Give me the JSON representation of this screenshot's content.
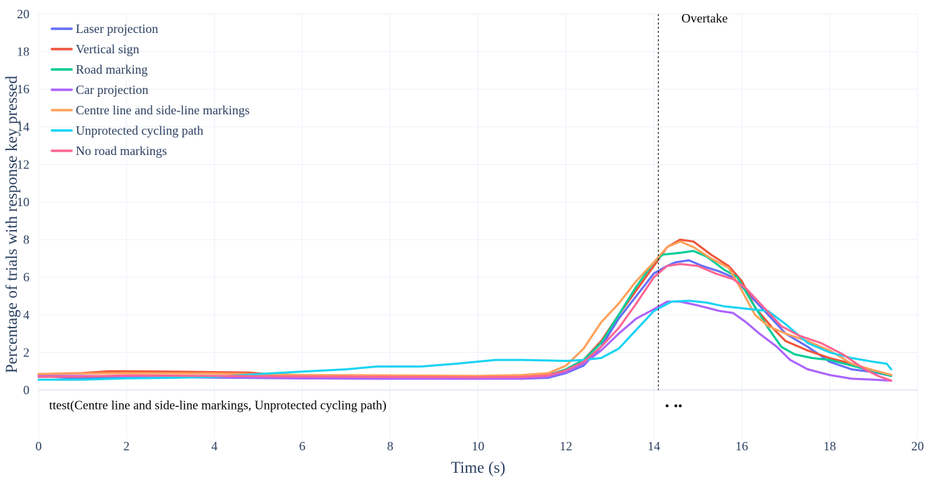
{
  "chart_data": {
    "type": "line",
    "xlabel": "Time (s)",
    "ylabel": "Percentage of trials with response key pressed",
    "xlim": [
      0,
      20
    ],
    "ylim": [
      -2.5,
      20
    ],
    "xticks": [
      0,
      2,
      4,
      6,
      8,
      10,
      12,
      14,
      16,
      18,
      20
    ],
    "yticks": [
      0,
      2,
      4,
      6,
      8,
      10,
      12,
      14,
      16,
      18,
      20
    ],
    "grid": true,
    "legend_position": "top-left",
    "vline": {
      "x": 14.1,
      "label": "Overtake"
    },
    "ttest": {
      "label": "ttest(Centre line and side-line markings, Unprotected cycling path)",
      "points": [
        14.3,
        14.5,
        14.6
      ],
      "y": -0.8
    },
    "series": [
      {
        "name": "Laser projection",
        "color": "#636efa",
        "points": [
          [
            0,
            0.75
          ],
          [
            1,
            0.6
          ],
          [
            1.5,
            0.68
          ],
          [
            2,
            0.7
          ],
          [
            4,
            0.66
          ],
          [
            6,
            0.62
          ],
          [
            8,
            0.6
          ],
          [
            10,
            0.6
          ],
          [
            11,
            0.6
          ],
          [
            11.6,
            0.65
          ],
          [
            12,
            0.9
          ],
          [
            12.4,
            1.3
          ],
          [
            12.8,
            2.3
          ],
          [
            13.2,
            3.8
          ],
          [
            13.6,
            5.0
          ],
          [
            14,
            6.2
          ],
          [
            14.3,
            6.6
          ],
          [
            14.5,
            6.8
          ],
          [
            14.8,
            6.9
          ],
          [
            15.1,
            6.6
          ],
          [
            15.5,
            6.3
          ],
          [
            15.8,
            6.0
          ],
          [
            16.2,
            5.0
          ],
          [
            16.6,
            4.0
          ],
          [
            17,
            3.0
          ],
          [
            17.5,
            2.3
          ],
          [
            18,
            1.5
          ],
          [
            18.5,
            1.1
          ],
          [
            19,
            0.95
          ],
          [
            19.4,
            0.75
          ]
        ]
      },
      {
        "name": "Vertical sign",
        "color": "#ef553b",
        "points": [
          [
            0,
            0.85
          ],
          [
            1,
            0.9
          ],
          [
            1.6,
            1.0
          ],
          [
            2,
            1.0
          ],
          [
            3,
            0.98
          ],
          [
            4,
            0.95
          ],
          [
            4.8,
            0.93
          ],
          [
            5.2,
            0.85
          ],
          [
            6,
            0.78
          ],
          [
            8,
            0.75
          ],
          [
            10,
            0.7
          ],
          [
            11,
            0.72
          ],
          [
            11.6,
            0.8
          ],
          [
            12,
            1.1
          ],
          [
            12.4,
            1.6
          ],
          [
            12.8,
            2.6
          ],
          [
            13.2,
            4.0
          ],
          [
            13.6,
            5.3
          ],
          [
            14,
            6.6
          ],
          [
            14.3,
            7.6
          ],
          [
            14.6,
            8.0
          ],
          [
            14.9,
            7.9
          ],
          [
            15.3,
            7.2
          ],
          [
            15.7,
            6.6
          ],
          [
            16,
            5.8
          ],
          [
            16.3,
            4.4
          ],
          [
            16.7,
            3.3
          ],
          [
            17,
            2.6
          ],
          [
            17.5,
            2.1
          ],
          [
            18,
            1.7
          ],
          [
            18.5,
            1.4
          ],
          [
            19,
            1.05
          ],
          [
            19.4,
            0.8
          ]
        ]
      },
      {
        "name": "Road marking",
        "color": "#00cc96",
        "points": [
          [
            0,
            0.7
          ],
          [
            1,
            0.72
          ],
          [
            2,
            0.75
          ],
          [
            4,
            0.72
          ],
          [
            6,
            0.7
          ],
          [
            8,
            0.7
          ],
          [
            10,
            0.68
          ],
          [
            11,
            0.7
          ],
          [
            11.6,
            0.78
          ],
          [
            12,
            1.1
          ],
          [
            12.4,
            1.6
          ],
          [
            12.8,
            2.5
          ],
          [
            13.2,
            4.0
          ],
          [
            13.6,
            5.5
          ],
          [
            14,
            6.8
          ],
          [
            14.2,
            7.2
          ],
          [
            14.6,
            7.3
          ],
          [
            14.9,
            7.4
          ],
          [
            15.2,
            7.1
          ],
          [
            15.6,
            6.4
          ],
          [
            15.9,
            6.0
          ],
          [
            16.2,
            4.8
          ],
          [
            16.6,
            3.3
          ],
          [
            16.9,
            2.3
          ],
          [
            17.2,
            1.9
          ],
          [
            17.6,
            1.7
          ],
          [
            18,
            1.6
          ],
          [
            18.5,
            1.3
          ],
          [
            19,
            1.0
          ],
          [
            19.4,
            0.75
          ]
        ]
      },
      {
        "name": "Car projection",
        "color": "#ab63fa",
        "points": [
          [
            0,
            0.75
          ],
          [
            1,
            0.75
          ],
          [
            2,
            0.74
          ],
          [
            4,
            0.7
          ],
          [
            6,
            0.62
          ],
          [
            8,
            0.6
          ],
          [
            10,
            0.6
          ],
          [
            11,
            0.6
          ],
          [
            11.6,
            0.7
          ],
          [
            12,
            0.95
          ],
          [
            12.4,
            1.4
          ],
          [
            12.8,
            2.1
          ],
          [
            13.2,
            3.0
          ],
          [
            13.6,
            3.8
          ],
          [
            14,
            4.3
          ],
          [
            14.3,
            4.7
          ],
          [
            14.6,
            4.7
          ],
          [
            15,
            4.5
          ],
          [
            15.5,
            4.2
          ],
          [
            15.8,
            4.1
          ],
          [
            16.1,
            3.6
          ],
          [
            16.4,
            3.0
          ],
          [
            16.8,
            2.3
          ],
          [
            17.1,
            1.6
          ],
          [
            17.5,
            1.1
          ],
          [
            18,
            0.8
          ],
          [
            18.5,
            0.6
          ],
          [
            19,
            0.55
          ],
          [
            19.4,
            0.5
          ]
        ]
      },
      {
        "name": "Centre line and side-line markings",
        "color": "#ffa15a",
        "points": [
          [
            0,
            0.85
          ],
          [
            1,
            0.88
          ],
          [
            2,
            0.9
          ],
          [
            4,
            0.88
          ],
          [
            5,
            0.84
          ],
          [
            6,
            0.8
          ],
          [
            8,
            0.78
          ],
          [
            10,
            0.75
          ],
          [
            11,
            0.8
          ],
          [
            11.6,
            0.9
          ],
          [
            12,
            1.3
          ],
          [
            12.4,
            2.2
          ],
          [
            12.8,
            3.6
          ],
          [
            13.2,
            4.6
          ],
          [
            13.6,
            5.8
          ],
          [
            14,
            6.8
          ],
          [
            14.3,
            7.6
          ],
          [
            14.6,
            7.9
          ],
          [
            14.9,
            7.6
          ],
          [
            15.3,
            7.0
          ],
          [
            15.7,
            6.5
          ],
          [
            16,
            5.3
          ],
          [
            16.3,
            4.0
          ],
          [
            16.6,
            3.4
          ],
          [
            17,
            3.0
          ],
          [
            17.5,
            2.6
          ],
          [
            18,
            2.1
          ],
          [
            18.5,
            1.4
          ],
          [
            19,
            1.05
          ],
          [
            19.4,
            0.8
          ]
        ]
      },
      {
        "name": "Unprotected cycling path",
        "color": "#19d3f3",
        "points": [
          [
            0,
            0.55
          ],
          [
            1,
            0.55
          ],
          [
            2,
            0.62
          ],
          [
            3,
            0.65
          ],
          [
            4,
            0.7
          ],
          [
            5,
            0.85
          ],
          [
            6,
            0.98
          ],
          [
            7,
            1.1
          ],
          [
            7.7,
            1.25
          ],
          [
            8.7,
            1.25
          ],
          [
            9.5,
            1.4
          ],
          [
            10.4,
            1.6
          ],
          [
            11,
            1.6
          ],
          [
            12,
            1.55
          ],
          [
            12.4,
            1.6
          ],
          [
            12.8,
            1.7
          ],
          [
            13.2,
            2.2
          ],
          [
            13.6,
            3.2
          ],
          [
            14,
            4.2
          ],
          [
            14.4,
            4.7
          ],
          [
            14.8,
            4.75
          ],
          [
            15.2,
            4.65
          ],
          [
            15.6,
            4.45
          ],
          [
            16,
            4.35
          ],
          [
            16.6,
            4.2
          ],
          [
            17,
            3.5
          ],
          [
            17.5,
            2.5
          ],
          [
            18,
            2.0
          ],
          [
            18.5,
            1.7
          ],
          [
            19,
            1.5
          ],
          [
            19.3,
            1.4
          ],
          [
            19.4,
            1.1
          ]
        ]
      },
      {
        "name": "No road markings",
        "color": "#ff6692",
        "points": [
          [
            0,
            0.7
          ],
          [
            1,
            0.72
          ],
          [
            2,
            0.78
          ],
          [
            4,
            0.75
          ],
          [
            6,
            0.72
          ],
          [
            8,
            0.7
          ],
          [
            10,
            0.68
          ],
          [
            11,
            0.7
          ],
          [
            11.6,
            0.78
          ],
          [
            12,
            1.05
          ],
          [
            12.4,
            1.5
          ],
          [
            12.8,
            2.3
          ],
          [
            13.2,
            3.3
          ],
          [
            13.6,
            4.6
          ],
          [
            14,
            6.0
          ],
          [
            14.3,
            6.6
          ],
          [
            14.6,
            6.7
          ],
          [
            15,
            6.6
          ],
          [
            15.4,
            6.2
          ],
          [
            15.8,
            5.9
          ],
          [
            16.1,
            5.4
          ],
          [
            16.5,
            4.4
          ],
          [
            16.9,
            3.4
          ],
          [
            17.3,
            2.9
          ],
          [
            17.8,
            2.5
          ],
          [
            18.3,
            1.9
          ],
          [
            18.8,
            1.1
          ],
          [
            19.1,
            0.75
          ],
          [
            19.4,
            0.5
          ]
        ]
      }
    ]
  }
}
